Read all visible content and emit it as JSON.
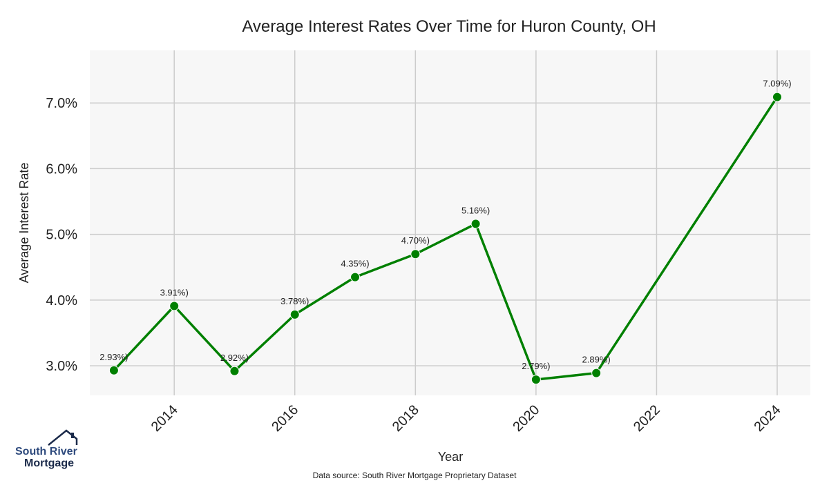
{
  "chart_data": {
    "type": "line",
    "title": "Average Interest Rates Over Time for Huron County, OH",
    "xlabel": "Year",
    "ylabel": "Average Interest Rate",
    "x": [
      2013,
      2014,
      2015,
      2016,
      2017,
      2018,
      2019,
      2020,
      2021,
      2024
    ],
    "values": [
      2.93,
      3.91,
      2.92,
      3.78,
      4.35,
      4.7,
      5.16,
      2.79,
      2.89,
      7.09
    ],
    "data_labels": [
      "2.93%)",
      "3.91%)",
      "2.92%)",
      "3.78%)",
      "4.35%)",
      "4.70%)",
      "5.16%)",
      "2.79%)",
      "2.89%)",
      "7.09%)"
    ],
    "xlim": [
      2012.6,
      2024.55
    ],
    "ylim": [
      2.55,
      7.8
    ],
    "x_ticks": [
      2014,
      2016,
      2018,
      2020,
      2022,
      2024
    ],
    "y_ticks": [
      3.0,
      4.0,
      5.0,
      6.0,
      7.0
    ],
    "y_tick_labels": [
      "3.0%",
      "4.0%",
      "5.0%",
      "6.0%",
      "7.0%"
    ],
    "line_color": "#008000",
    "grid": true,
    "background": "#f7f7f7"
  },
  "footer": {
    "source": "Data source: South River Mortgage Proprietary Dataset"
  },
  "logo": {
    "line1": "South River",
    "line2": "Mortgage"
  }
}
